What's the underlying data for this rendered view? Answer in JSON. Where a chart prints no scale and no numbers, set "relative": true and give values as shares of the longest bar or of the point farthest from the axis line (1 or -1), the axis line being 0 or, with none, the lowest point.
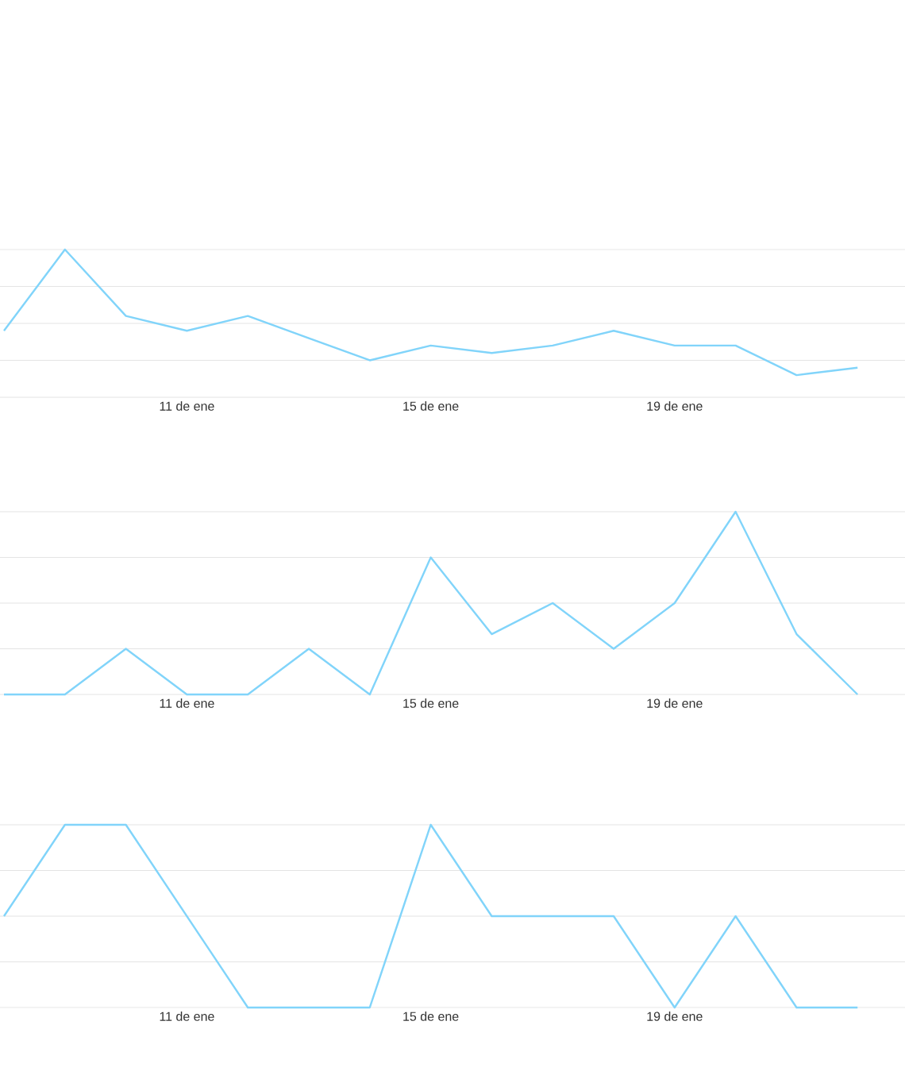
{
  "chart_data": [
    {
      "type": "line",
      "relative": true,
      "grid": "y",
      "tick_labels": "x",
      "color": "#81d4fa",
      "categories": [
        null,
        null,
        null,
        "11 de ene",
        null,
        null,
        null,
        "15 de ene",
        null,
        null,
        null,
        "19 de ene",
        null,
        null,
        null
      ],
      "values": [
        0.45,
        1,
        0.55,
        0.45,
        0.55,
        0.4,
        0.25,
        0.35,
        0.3,
        0.35,
        0.45,
        0.35,
        0.35,
        0.15,
        0.2
      ]
    },
    {
      "type": "line",
      "relative": true,
      "grid": "y",
      "tick_labels": "x",
      "color": "#81d4fa",
      "categories": [
        null,
        null,
        null,
        "11 de ene",
        null,
        null,
        null,
        "15 de ene",
        null,
        null,
        null,
        "19 de ene",
        null,
        null,
        null
      ],
      "values": [
        0,
        0,
        0.25,
        0,
        0,
        0.25,
        0,
        0.75,
        0.33,
        0.5,
        0.25,
        0.5,
        1,
        0.33,
        0
      ]
    },
    {
      "type": "line",
      "relative": true,
      "grid": "y",
      "tick_labels": "x",
      "color": "#81d4fa",
      "categories": [
        null,
        null,
        null,
        "11 de ene",
        null,
        null,
        null,
        "15 de ene",
        null,
        null,
        null,
        "19 de ene",
        null,
        null,
        null
      ],
      "values": [
        0.5,
        1,
        1,
        0.5,
        0,
        0,
        0,
        1,
        0.5,
        0.5,
        0.5,
        0,
        0.5,
        0,
        0
      ]
    }
  ]
}
